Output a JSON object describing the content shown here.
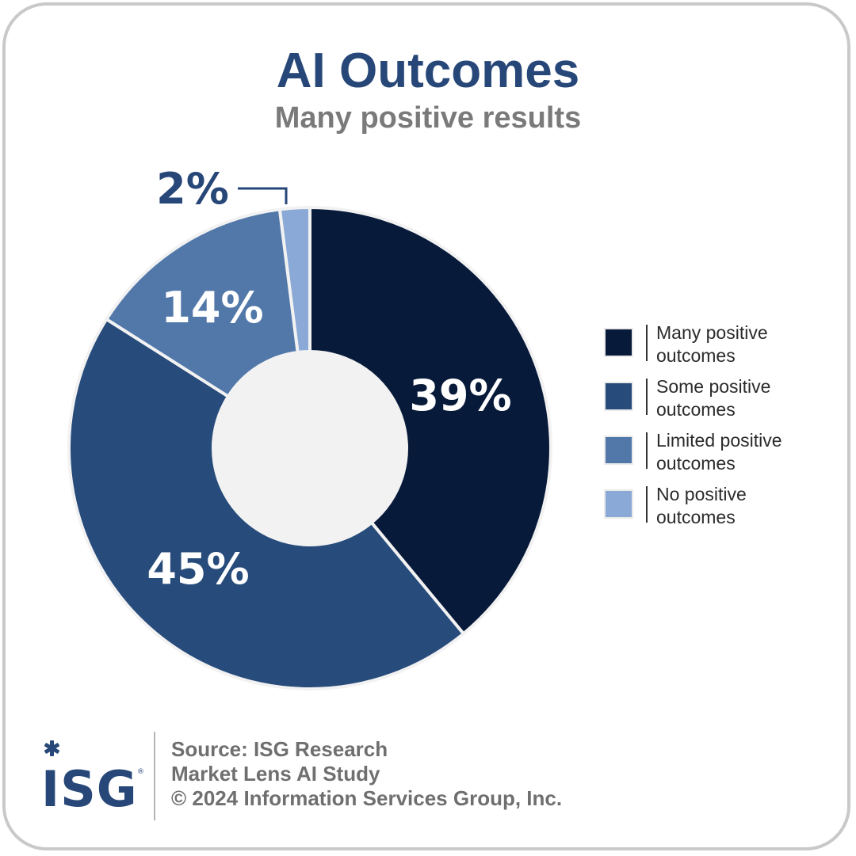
{
  "title": "AI Outcomes",
  "subtitle": "Many positive results",
  "chart_data": {
    "type": "pie",
    "title": "AI Outcomes",
    "subtitle": "Many positive results",
    "labels": [
      "Many positive outcomes",
      "Some positive outcomes",
      "Limited positive outcomes",
      "No positive outcomes"
    ],
    "values": [
      39,
      45,
      14,
      2
    ],
    "value_labels": [
      "39%",
      "45%",
      "14%",
      "2%"
    ],
    "colors": [
      "#081a3a",
      "#274b7b",
      "#5278aa",
      "#8aa9d6"
    ],
    "donut": true,
    "legend_position": "right"
  },
  "legend": [
    {
      "line1": "Many positive",
      "line2": "outcomes",
      "color": "#081a3a"
    },
    {
      "line1": "Some positive",
      "line2": "outcomes",
      "color": "#274b7b"
    },
    {
      "line1": "Limited positive",
      "line2": "outcomes",
      "color": "#5278aa"
    },
    {
      "line1": "No positive",
      "line2": "outcomes",
      "color": "#8aa9d6"
    }
  ],
  "footer": {
    "logo_text": "ISG",
    "source_line1": "Source: ISG Research",
    "source_line2": "Market Lens AI Study",
    "source_line3": "© 2024 Information Services Group, Inc."
  }
}
